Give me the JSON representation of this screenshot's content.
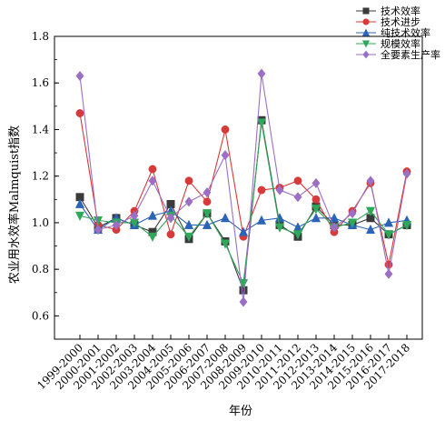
{
  "chart_data": {
    "type": "line",
    "xlabel": "年份",
    "ylabel": "农业用水效率Malmquist指数",
    "ylim": [
      0.5,
      1.8
    ],
    "yticks": [
      0.6,
      0.8,
      1.0,
      1.2,
      1.4,
      1.6,
      1.8
    ],
    "grid": false,
    "legend_position": "top-right",
    "categories": [
      "1999-2000",
      "2000-2001",
      "2001-2002",
      "2002-2003",
      "2003-2004",
      "2004-2005",
      "2005-2006",
      "2006-2007",
      "2007-2008",
      "2008-2009",
      "2009-2010",
      "2010-2011",
      "2011-2012",
      "2012-2013",
      "2013-2014",
      "2014-2015",
      "2015-2016",
      "2016-2017",
      "2017-2018"
    ],
    "series": [
      {
        "name": "技术效率",
        "color": "#3a3a3a",
        "marker": "square",
        "values": [
          1.11,
          0.98,
          1.02,
          0.99,
          0.96,
          1.08,
          0.93,
          1.04,
          0.92,
          0.71,
          1.44,
          0.99,
          0.94,
          1.07,
          0.99,
          0.99,
          1.02,
          0.95,
          0.99
        ]
      },
      {
        "name": "技术进步",
        "color": "#d63a3a",
        "marker": "circle",
        "values": [
          1.47,
          0.99,
          0.97,
          1.05,
          1.23,
          0.95,
          1.18,
          1.09,
          1.4,
          0.94,
          1.14,
          1.15,
          1.18,
          1.1,
          0.96,
          1.05,
          1.17,
          0.82,
          1.22
        ]
      },
      {
        "name": "纯技术效率",
        "color": "#2b63b8",
        "marker": "triangle-up",
        "values": [
          1.08,
          0.97,
          1.02,
          0.99,
          1.03,
          1.05,
          0.99,
          0.99,
          1.02,
          0.96,
          1.01,
          1.02,
          0.98,
          1.02,
          1.02,
          0.99,
          0.97,
          1.0,
          1.01
        ]
      },
      {
        "name": "规模效率",
        "color": "#2fa85a",
        "marker": "triangle-down",
        "values": [
          1.03,
          1.01,
          1.0,
          1.0,
          0.94,
          1.03,
          0.94,
          1.04,
          0.91,
          0.74,
          1.43,
          0.98,
          0.95,
          1.06,
          0.98,
          1.0,
          1.05,
          0.95,
          0.99
        ]
      },
      {
        "name": "全要素生产率",
        "color": "#9b6fc4",
        "marker": "diamond",
        "values": [
          1.63,
          0.97,
          0.99,
          1.03,
          1.18,
          1.02,
          1.09,
          1.13,
          1.29,
          0.66,
          1.64,
          1.14,
          1.11,
          1.17,
          0.98,
          1.04,
          1.18,
          0.78,
          1.21
        ]
      }
    ]
  }
}
